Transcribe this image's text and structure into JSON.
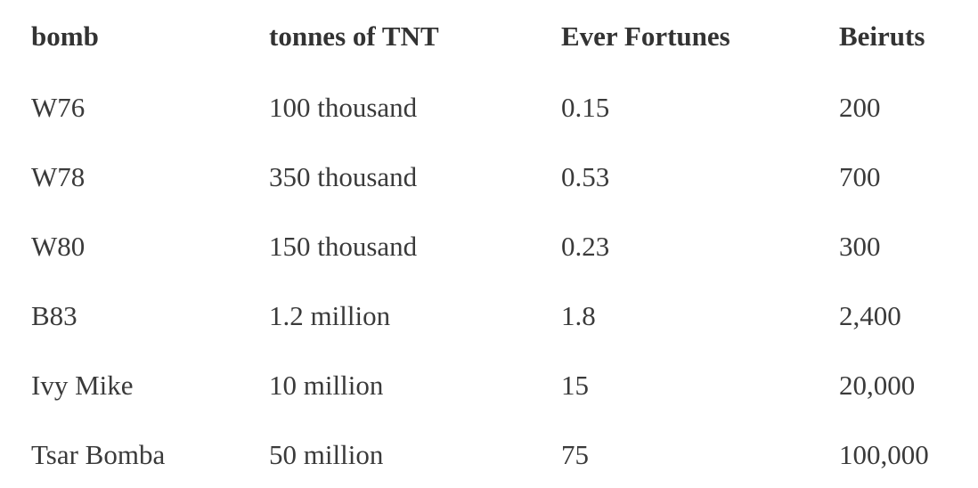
{
  "table": {
    "headers": [
      "bomb",
      "tonnes of TNT",
      "Ever Fortunes",
      "Beiruts"
    ],
    "rows": [
      [
        "W76",
        "100 thousand",
        "0.15",
        "200"
      ],
      [
        "W78",
        "350 thousand",
        "0.53",
        "700"
      ],
      [
        "W80",
        "150 thousand",
        "0.23",
        "300"
      ],
      [
        "B83",
        "1.2 million",
        "1.8",
        "2,400"
      ],
      [
        "Ivy Mike",
        "10 million",
        "15",
        "20,000"
      ],
      [
        "Tsar Bomba",
        "50 million",
        "75",
        "100,000"
      ]
    ]
  }
}
